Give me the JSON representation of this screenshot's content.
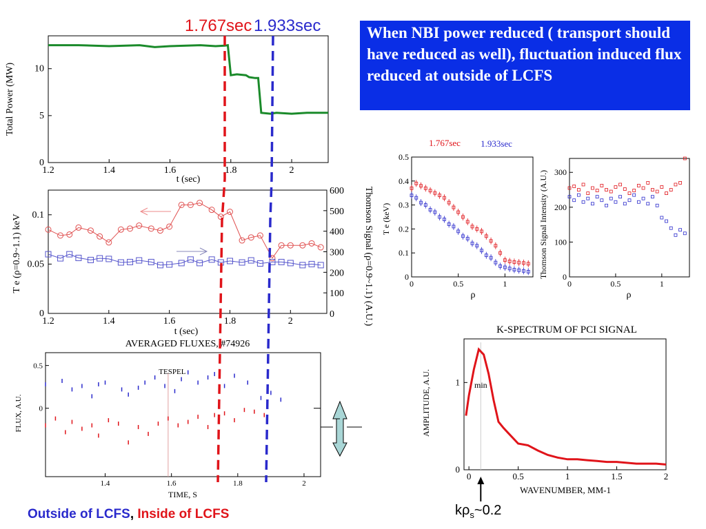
{
  "header": {
    "time_a": "1.767sec",
    "time_b": "1.933sec",
    "note": "When NBI power reduced ( transport should have reduced as well), fluctuation induced flux reduced at outside of LCFS"
  },
  "footer": {
    "outside": "Outside of LCFS",
    "comma": ",",
    "inside": "Inside of LCFS",
    "krho_k": "k",
    "krho_rho": "ρ",
    "krho_s": "s",
    "krho_val": "~0.2"
  },
  "colors": {
    "red": "#e0141a",
    "blue": "#2a2acc",
    "green": "#1a8a2a",
    "note_bg": "#0a2ee6",
    "arrow_fill": "#a9d6d6"
  },
  "chart_data": [
    {
      "type": "line",
      "id": "power",
      "xlabel": "t (sec)",
      "ylabel": "Total Power (MW)",
      "xlim": [
        1.2,
        2.12
      ],
      "ylim": [
        0,
        13.5
      ],
      "xticks": [
        "1.2",
        "1.4",
        "1.6",
        "1.8",
        "2"
      ],
      "yticks": [
        "0",
        "5",
        "10"
      ],
      "series": [
        {
          "x": [
            1.2,
            1.3,
            1.4,
            1.5,
            1.55,
            1.6,
            1.7,
            1.75,
            1.78,
            1.79,
            1.8,
            1.82,
            1.85,
            1.86,
            1.88,
            1.89,
            1.9,
            1.93,
            1.95,
            2.0,
            2.05,
            2.12
          ],
          "y": [
            12.5,
            12.5,
            12.4,
            12.5,
            12.3,
            12.4,
            12.5,
            12.4,
            12.45,
            12.5,
            9.3,
            9.4,
            9.3,
            9.1,
            9.0,
            9.0,
            5.3,
            5.2,
            5.3,
            5.2,
            5.3,
            5.3
          ]
        }
      ]
    },
    {
      "type": "line",
      "id": "te-thomson",
      "xlabel": "t (sec)",
      "ylabel": "T e (ρ=0.9~1.1) keV",
      "ylabel_right": "Thomson Signal (ρ=0.9~1.1) (A.U.)",
      "xlim": [
        1.2,
        2.12
      ],
      "ylim": [
        0,
        0.125
      ],
      "ylim_right": [
        0,
        600
      ],
      "xticks": [
        "1.2",
        "1.4",
        "1.6",
        "1.8",
        "2"
      ],
      "yticks": [
        "0",
        "0.05",
        "0.1"
      ],
      "yticks_right": [
        "0",
        "100",
        "200",
        "300",
        "400",
        "500",
        "600"
      ],
      "series": [
        {
          "name": "Te",
          "x": [
            1.2,
            1.24,
            1.27,
            1.3,
            1.34,
            1.37,
            1.4,
            1.44,
            1.47,
            1.5,
            1.54,
            1.57,
            1.6,
            1.64,
            1.67,
            1.7,
            1.74,
            1.77,
            1.8,
            1.84,
            1.87,
            1.9,
            1.94,
            1.97,
            2.0,
            2.04,
            2.07,
            2.1
          ],
          "values": [
            0.085,
            0.079,
            0.08,
            0.087,
            0.084,
            0.078,
            0.072,
            0.085,
            0.086,
            0.089,
            0.086,
            0.084,
            0.088,
            0.11,
            0.11,
            0.112,
            0.105,
            0.098,
            0.103,
            0.074,
            0.077,
            0.079,
            0.056,
            0.069,
            0.069,
            0.069,
            0.071,
            0.067
          ]
        },
        {
          "name": "Thomson",
          "x": [
            1.2,
            1.24,
            1.27,
            1.3,
            1.34,
            1.37,
            1.4,
            1.44,
            1.47,
            1.5,
            1.54,
            1.57,
            1.6,
            1.64,
            1.67,
            1.7,
            1.74,
            1.77,
            1.8,
            1.84,
            1.87,
            1.9,
            1.94,
            1.97,
            2.0,
            2.04,
            2.07,
            2.1
          ],
          "values": [
            288,
            268,
            288,
            270,
            260,
            268,
            265,
            248,
            250,
            258,
            250,
            235,
            238,
            245,
            262,
            245,
            262,
            248,
            255,
            248,
            258,
            243,
            250,
            250,
            245,
            235,
            240,
            235
          ]
        }
      ]
    },
    {
      "type": "scatter",
      "id": "te-profile",
      "xlabel": "ρ",
      "ylabel": "T e (keV)",
      "xlim": [
        0,
        1.3
      ],
      "ylim": [
        0,
        0.5
      ],
      "xticks": [
        "0",
        "0.5",
        "1"
      ],
      "yticks": [
        "0",
        "0.1",
        "0.2",
        "0.3",
        "0.4",
        "0.5"
      ],
      "legend": [
        "1.767sec",
        "1.933sec"
      ],
      "series": [
        {
          "name": "1.767sec",
          "x": [
            0.0,
            0.05,
            0.1,
            0.15,
            0.2,
            0.25,
            0.3,
            0.35,
            0.4,
            0.45,
            0.5,
            0.55,
            0.6,
            0.65,
            0.7,
            0.75,
            0.8,
            0.85,
            0.9,
            0.95,
            1.0,
            1.05,
            1.1,
            1.15,
            1.2,
            1.25
          ],
          "values": [
            0.37,
            0.39,
            0.38,
            0.37,
            0.36,
            0.35,
            0.34,
            0.33,
            0.31,
            0.29,
            0.27,
            0.25,
            0.23,
            0.21,
            0.2,
            0.19,
            0.17,
            0.15,
            0.13,
            0.1,
            0.07,
            0.065,
            0.062,
            0.06,
            0.058,
            0.055
          ]
        },
        {
          "name": "1.933sec",
          "x": [
            0.0,
            0.05,
            0.1,
            0.15,
            0.2,
            0.25,
            0.3,
            0.35,
            0.4,
            0.45,
            0.5,
            0.55,
            0.6,
            0.65,
            0.7,
            0.75,
            0.8,
            0.85,
            0.9,
            0.95,
            1.0,
            1.05,
            1.1,
            1.15,
            1.2,
            1.25
          ],
          "values": [
            0.34,
            0.33,
            0.31,
            0.3,
            0.28,
            0.27,
            0.25,
            0.24,
            0.22,
            0.21,
            0.19,
            0.17,
            0.16,
            0.14,
            0.13,
            0.11,
            0.09,
            0.08,
            0.06,
            0.045,
            0.04,
            0.035,
            0.03,
            0.028,
            0.025,
            0.022
          ]
        }
      ]
    },
    {
      "type": "scatter",
      "id": "thomson-profile",
      "xlabel": "ρ",
      "ylabel": "Thomson Signal Intensity (A.U.)",
      "xlim": [
        0,
        1.3
      ],
      "ylim": [
        0,
        340
      ],
      "xticks": [
        "0",
        "0.5",
        "1"
      ],
      "yticks": [
        "0",
        "100",
        "200",
        "300"
      ],
      "series": [
        {
          "name": "1.767sec",
          "x": [
            0.0,
            0.05,
            0.1,
            0.15,
            0.2,
            0.25,
            0.3,
            0.35,
            0.4,
            0.45,
            0.5,
            0.55,
            0.6,
            0.65,
            0.7,
            0.75,
            0.8,
            0.85,
            0.9,
            0.95,
            1.0,
            1.05,
            1.1,
            1.15,
            1.2,
            1.25
          ],
          "values": [
            255,
            260,
            250,
            265,
            240,
            255,
            248,
            262,
            250,
            245,
            258,
            265,
            252,
            240,
            248,
            262,
            255,
            270,
            250,
            245,
            258,
            240,
            250,
            265,
            270,
            340
          ]
        },
        {
          "name": "1.933sec",
          "x": [
            0.0,
            0.05,
            0.1,
            0.15,
            0.2,
            0.25,
            0.3,
            0.35,
            0.4,
            0.45,
            0.5,
            0.55,
            0.6,
            0.65,
            0.7,
            0.75,
            0.8,
            0.85,
            0.9,
            0.95,
            1.0,
            1.05,
            1.1,
            1.15,
            1.2,
            1.25
          ],
          "values": [
            230,
            220,
            235,
            215,
            225,
            210,
            230,
            220,
            205,
            225,
            215,
            230,
            210,
            220,
            235,
            215,
            225,
            210,
            230,
            205,
            170,
            160,
            140,
            120,
            135,
            125
          ]
        }
      ]
    },
    {
      "type": "scatter",
      "id": "fluxes",
      "title": "AVERAGED FLUXES,  #74926",
      "xlabel": "TIME, S",
      "ylabel": "FLUX, A.U.",
      "annotation": "TESPEL",
      "annotation_x": 1.59,
      "xlim": [
        1.22,
        2.05
      ],
      "ylim": [
        -0.8,
        0.65
      ],
      "xticks": [
        "1.4",
        "1.6",
        "1.8",
        "2"
      ],
      "yticks": [
        "0",
        "0.5"
      ],
      "series": [
        {
          "name": "outward",
          "x": [
            1.22,
            1.27,
            1.3,
            1.33,
            1.36,
            1.38,
            1.4,
            1.45,
            1.47,
            1.5,
            1.52,
            1.55,
            1.58,
            1.61,
            1.63,
            1.65,
            1.68,
            1.71,
            1.73,
            1.76,
            1.79,
            1.83,
            1.87,
            1.9,
            1.93
          ],
          "values": [
            0.28,
            0.32,
            0.22,
            0.26,
            0.14,
            0.28,
            0.3,
            0.22,
            0.16,
            0.24,
            0.3,
            0.36,
            0.26,
            0.2,
            0.34,
            0.42,
            0.3,
            0.36,
            0.4,
            0.26,
            0.38,
            0.3,
            0.12,
            0.18,
            0.1
          ]
        },
        {
          "name": "inward",
          "x": [
            1.22,
            1.25,
            1.28,
            1.3,
            1.33,
            1.36,
            1.38,
            1.41,
            1.44,
            1.47,
            1.5,
            1.53,
            1.56,
            1.59,
            1.62,
            1.65,
            1.68,
            1.71,
            1.73,
            1.76,
            1.79,
            1.82,
            1.85,
            1.88
          ],
          "values": [
            -0.2,
            -0.12,
            -0.28,
            -0.16,
            -0.24,
            -0.2,
            -0.32,
            -0.14,
            -0.18,
            -0.4,
            -0.22,
            -0.3,
            -0.18,
            -0.12,
            -0.2,
            -0.16,
            -0.1,
            -0.22,
            -0.08,
            -0.06,
            -0.14,
            -0.02,
            -0.04,
            -0.08
          ]
        }
      ]
    },
    {
      "type": "line",
      "id": "k-spectrum",
      "title": "K-SPECTRUM OF PCI SIGNAL",
      "xlabel": "WAVENUMBER, MM-1",
      "ylabel": "AMPLITUDE, A.U.",
      "annotation": "min",
      "xlim": [
        -0.05,
        2.0
      ],
      "ylim": [
        0,
        1.5
      ],
      "xticks": [
        "0",
        "0.5",
        "1",
        "1.5",
        "2"
      ],
      "yticks": [
        "0",
        "1"
      ],
      "series": [
        {
          "x": [
            -0.03,
            0.0,
            0.05,
            0.1,
            0.15,
            0.2,
            0.25,
            0.3,
            0.35,
            0.4,
            0.5,
            0.6,
            0.7,
            0.8,
            0.9,
            1.0,
            1.1,
            1.2,
            1.3,
            1.4,
            1.5,
            1.6,
            1.7,
            1.8,
            1.9,
            2.0
          ],
          "values": [
            0.62,
            0.85,
            1.15,
            1.38,
            1.32,
            1.1,
            0.8,
            0.55,
            0.48,
            0.42,
            0.3,
            0.28,
            0.22,
            0.17,
            0.14,
            0.12,
            0.12,
            0.11,
            0.1,
            0.09,
            0.09,
            0.08,
            0.07,
            0.07,
            0.07,
            0.06
          ]
        }
      ]
    }
  ]
}
